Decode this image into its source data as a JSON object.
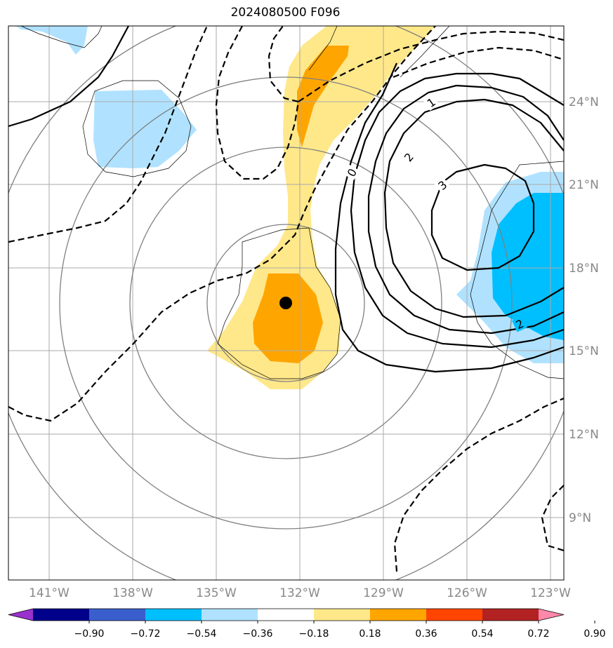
{
  "map": {
    "title": "2024080500 F096",
    "lon_labels": [
      "141°W",
      "138°W",
      "135°W",
      "132°W",
      "129°W",
      "126°W",
      "123°W"
    ],
    "lat_labels": [
      "24°N",
      "21°N",
      "18°N",
      "15°N",
      "12°N",
      "9°N"
    ],
    "storm_center": {
      "lon": "132.5°W",
      "lat": "16.7°N"
    },
    "contour_labels": [
      "0",
      "1",
      "2",
      "3",
      "2"
    ]
  },
  "colorbar": {
    "tick_labels": [
      "−0.90",
      "−0.72",
      "−0.54",
      "−0.36",
      "−0.18",
      "0.18",
      "0.36",
      "0.54",
      "0.72",
      "0.90"
    ],
    "colors": [
      "#9932cc",
      "#00008b",
      "#3a5fcd",
      "#00bfff",
      "#b0e2ff",
      "#ffffff",
      "#ffe88a",
      "#ffa500",
      "#ff4500",
      "#b22222",
      "#ff88aa"
    ]
  },
  "colors": {
    "light_yellow": "#ffe88a",
    "orange": "#ffa500",
    "light_blue": "#b0e2ff",
    "deep_sky_blue": "#00bfff",
    "grid": "#aaaaaa",
    "range_rings": "#808080"
  }
}
